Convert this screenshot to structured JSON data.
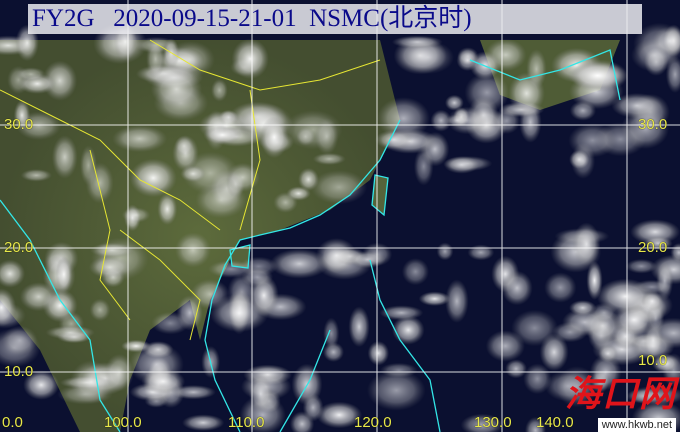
{
  "header": {
    "satellite": "FY2G",
    "datetime": "2020-09-15-21-01",
    "source": "NSMC(北京时)"
  },
  "lat_labels_left": [
    "30.0",
    "20.0",
    "10.0",
    "0.0"
  ],
  "lat_labels_right": [
    "30.0",
    "20.0",
    "10.0"
  ],
  "lon_labels": [
    "100.0",
    "110.0",
    "120.0",
    "130.0",
    "140.0"
  ],
  "watermark": {
    "text": "海口网",
    "url": "www.hkwb.net"
  },
  "colors": {
    "ocean": "#0b1030",
    "land": "#5a6a3a",
    "coastline": "#33e6e6",
    "borders": "#e6e633",
    "grid": "#ffffff",
    "labels": "#e8e84a"
  }
}
